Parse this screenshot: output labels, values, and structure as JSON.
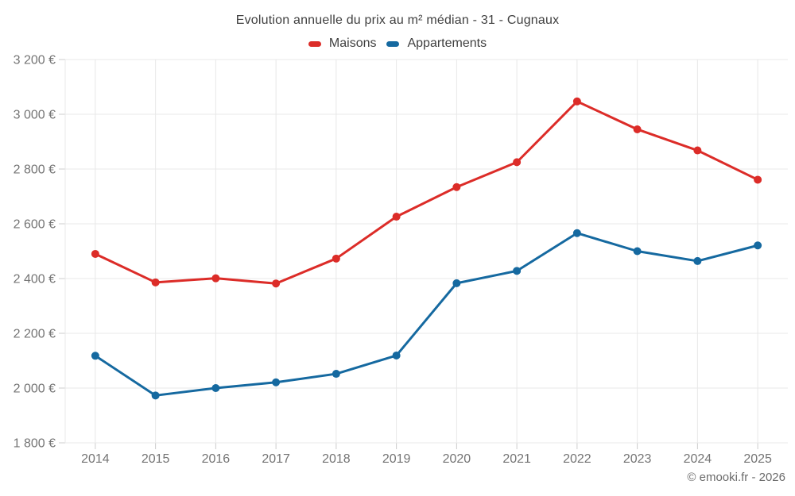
{
  "title": "Evolution annuelle du prix au m² médian - 31 - Cugnaux",
  "footer": "© emooki.fr - 2026",
  "legend": {
    "items": [
      {
        "label": "Maisons",
        "color": "#dc2c28"
      },
      {
        "label": "Appartements",
        "color": "#1569a0"
      }
    ]
  },
  "chart_data": {
    "type": "line",
    "title": "Evolution annuelle du prix au m² médian - 31 - Cugnaux",
    "x": [
      2014,
      2015,
      2016,
      2017,
      2018,
      2019,
      2020,
      2021,
      2022,
      2023,
      2024,
      2025
    ],
    "series": [
      {
        "name": "Maisons",
        "color": "#dc2c28",
        "values": [
          2490,
          2386,
          2401,
          2382,
          2473,
          2626,
          2734,
          2825,
          3047,
          2945,
          2868,
          2761
        ]
      },
      {
        "name": "Appartements",
        "color": "#1569a0",
        "values": [
          2118,
          1973,
          2000,
          2021,
          2052,
          2119,
          2383,
          2428,
          2566,
          2500,
          2464,
          2521
        ]
      }
    ],
    "xlabel": "",
    "ylabel": "",
    "ylim": [
      1800,
      3200
    ],
    "ytick_step": 200,
    "ytick_suffix": " €",
    "grid": true,
    "legend_position": "top",
    "colors": {
      "grid": "#e8e8e8",
      "tick": "#cccccc",
      "axis_label": "#747474"
    }
  }
}
